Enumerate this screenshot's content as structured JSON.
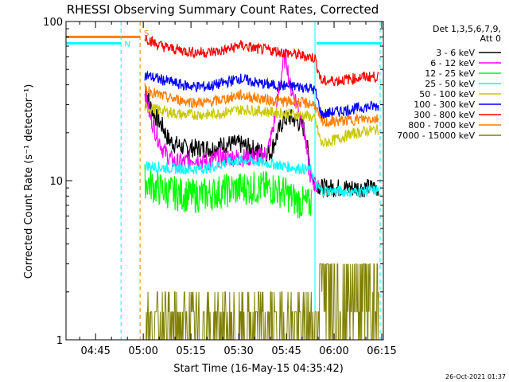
{
  "chart_data": {
    "type": "line",
    "title": "RHESSI Observing Summary Count Rates, Corrected",
    "xlabel": "Start Time (16-May-15 04:35:42)",
    "ylabel": "Corrected Count Rate (s⁻¹ detector⁻¹)",
    "ylog": true,
    "ylim": [
      1,
      100
    ],
    "xlim_min": [
      35.7,
      135.5
    ],
    "x_ticks": [
      {
        "min": 45,
        "label": "04:45"
      },
      {
        "min": 60,
        "label": "05:00"
      },
      {
        "min": 75,
        "label": "05:15"
      },
      {
        "min": 90,
        "label": "05:30"
      },
      {
        "min": 105,
        "label": "05:45"
      },
      {
        "min": 120,
        "label": "06:00"
      },
      {
        "min": 135,
        "label": "06:15"
      }
    ],
    "y_ticks": [
      {
        "value": 1,
        "label": "1"
      },
      {
        "value": 10,
        "label": "10"
      },
      {
        "value": 100,
        "label": "100"
      }
    ],
    "legend": {
      "header_line1": "Det 1,3,5,6,7,9,",
      "header_line2": "Att 0",
      "position": "right"
    },
    "series": [
      {
        "name": "3 - 6 keV",
        "color": "#000000",
        "points": [
          [
            60.5,
            40
          ],
          [
            62,
            30
          ],
          [
            64,
            25
          ],
          [
            66,
            22
          ],
          [
            68,
            18
          ],
          [
            70,
            17
          ],
          [
            73,
            16
          ],
          [
            78,
            16
          ],
          [
            82,
            16
          ],
          [
            86,
            17
          ],
          [
            90,
            17
          ],
          [
            94,
            16
          ],
          [
            98,
            15
          ],
          [
            100,
            15
          ],
          [
            102,
            19
          ],
          [
            104,
            24
          ],
          [
            106,
            25
          ],
          [
            108,
            24
          ],
          [
            110,
            22
          ],
          [
            111,
            20
          ],
          [
            112,
            14
          ],
          [
            113,
            11
          ],
          [
            114,
            10
          ],
          [
            116,
            9
          ],
          [
            120,
            9
          ],
          [
            125,
            9
          ],
          [
            130,
            9
          ],
          [
            134,
            9
          ]
        ]
      },
      {
        "name": "6 - 12 keV",
        "color": "#ff00ff",
        "points": [
          [
            60.5,
            35
          ],
          [
            62,
            26
          ],
          [
            64,
            20
          ],
          [
            66,
            16
          ],
          [
            68,
            14
          ],
          [
            70,
            13
          ],
          [
            73,
            13
          ],
          [
            76,
            14
          ],
          [
            80,
            13
          ],
          [
            84,
            14
          ],
          [
            88,
            14
          ],
          [
            92,
            14
          ],
          [
            96,
            14
          ],
          [
            99,
            15
          ],
          [
            101,
            22
          ],
          [
            103,
            40
          ],
          [
            104,
            55
          ],
          [
            105,
            60
          ],
          [
            106,
            40
          ],
          [
            108,
            32
          ],
          [
            110,
            24
          ],
          [
            111,
            18
          ],
          [
            112,
            12
          ],
          [
            113,
            10
          ],
          [
            115,
            9
          ]
        ]
      },
      {
        "name": "12 - 25 keV",
        "color": "#00ff00",
        "points": [
          [
            60.5,
            10
          ],
          [
            64,
            9
          ],
          [
            68,
            8.5
          ],
          [
            72,
            8.2
          ],
          [
            76,
            8
          ],
          [
            80,
            8.2
          ],
          [
            84,
            8.5
          ],
          [
            88,
            8.8
          ],
          [
            92,
            9
          ],
          [
            96,
            9
          ],
          [
            100,
            9
          ],
          [
            104,
            8.5
          ],
          [
            108,
            7.5
          ],
          [
            112,
            7
          ],
          [
            113,
            7.5
          ]
        ]
      },
      {
        "name": "25 - 50 keV",
        "color": "#00ffff",
        "points": [
          [
            60.5,
            12.5
          ],
          [
            64,
            12.2
          ],
          [
            68,
            12
          ],
          [
            72,
            11.9
          ],
          [
            76,
            11.8
          ],
          [
            80,
            12
          ],
          [
            84,
            12.6
          ],
          [
            88,
            13.2
          ],
          [
            92,
            13.5
          ],
          [
            96,
            13.1
          ],
          [
            100,
            12.8
          ],
          [
            104,
            12.4
          ],
          [
            108,
            12
          ],
          [
            111,
            11.8
          ],
          [
            113,
            11.6
          ],
          [
            114,
            9.5
          ],
          [
            116,
            8.6
          ],
          [
            120,
            8.6
          ],
          [
            125,
            8.5
          ],
          [
            130,
            8.6
          ],
          [
            134,
            8.7
          ]
        ]
      },
      {
        "name": "50 - 100 keV",
        "color": "#c8c800",
        "points": [
          [
            60.5,
            29
          ],
          [
            64,
            28
          ],
          [
            68,
            27
          ],
          [
            72,
            26
          ],
          [
            76,
            26
          ],
          [
            80,
            26
          ],
          [
            84,
            26.5
          ],
          [
            88,
            27.5
          ],
          [
            92,
            28
          ],
          [
            96,
            27.5
          ],
          [
            100,
            27
          ],
          [
            104,
            26.5
          ],
          [
            108,
            26
          ],
          [
            112,
            25.5
          ],
          [
            114,
            24
          ],
          [
            116,
            17
          ],
          [
            120,
            18
          ],
          [
            125,
            19.5
          ],
          [
            130,
            20.5
          ],
          [
            134,
            21
          ]
        ]
      },
      {
        "name": "100 - 300 keV",
        "color": "#0000ff",
        "points": [
          [
            60.5,
            46
          ],
          [
            64,
            44
          ],
          [
            68,
            42
          ],
          [
            72,
            40
          ],
          [
            76,
            39
          ],
          [
            80,
            39
          ],
          [
            84,
            40.5
          ],
          [
            88,
            42.5
          ],
          [
            90,
            44
          ],
          [
            92,
            43
          ],
          [
            96,
            41
          ],
          [
            100,
            40
          ],
          [
            104,
            39.5
          ],
          [
            108,
            39
          ],
          [
            112,
            38.5
          ],
          [
            114,
            37
          ],
          [
            116,
            26
          ],
          [
            120,
            27
          ],
          [
            125,
            28
          ],
          [
            130,
            29
          ],
          [
            134,
            29.5
          ]
        ]
      },
      {
        "name": "300 - 800 keV",
        "color": "#ff0000",
        "points": [
          [
            60.5,
            80
          ],
          [
            64,
            72
          ],
          [
            68,
            68
          ],
          [
            72,
            66
          ],
          [
            76,
            64
          ],
          [
            80,
            64
          ],
          [
            84,
            65
          ],
          [
            88,
            68
          ],
          [
            90,
            71
          ],
          [
            92,
            70
          ],
          [
            96,
            67
          ],
          [
            100,
            66
          ],
          [
            104,
            64
          ],
          [
            108,
            62
          ],
          [
            112,
            60
          ],
          [
            114,
            59
          ],
          [
            116,
            42
          ],
          [
            120,
            42.5
          ],
          [
            125,
            43.5
          ],
          [
            130,
            45
          ],
          [
            134,
            45
          ]
        ]
      },
      {
        "name": "800 - 7000 keV",
        "color": "#ff7f00",
        "points": [
          [
            60.5,
            38
          ],
          [
            64,
            35
          ],
          [
            68,
            33
          ],
          [
            72,
            32
          ],
          [
            76,
            31
          ],
          [
            80,
            31
          ],
          [
            84,
            32
          ],
          [
            88,
            33.5
          ],
          [
            90,
            34.5
          ],
          [
            92,
            34
          ],
          [
            96,
            33
          ],
          [
            100,
            32
          ],
          [
            104,
            31.5
          ],
          [
            108,
            31
          ],
          [
            112,
            30.5
          ],
          [
            114,
            30
          ],
          [
            116,
            23
          ],
          [
            120,
            23.5
          ],
          [
            125,
            24
          ],
          [
            130,
            24.5
          ],
          [
            134,
            24.5
          ]
        ]
      },
      {
        "name": "7000 - 15000 keV",
        "color": "#808000",
        "points": [
          [
            60.5,
            1.5
          ],
          [
            70,
            1.5
          ],
          [
            80,
            1.5
          ],
          [
            90,
            1.5
          ],
          [
            100,
            1.5
          ],
          [
            110,
            1.5
          ],
          [
            120,
            1.5
          ],
          [
            130,
            1.5
          ],
          [
            134,
            1.5
          ]
        ]
      }
    ],
    "annotations": [
      {
        "type": "hline",
        "color": "#00ffff",
        "y": 73,
        "x0": 35.7,
        "x1": 53
      },
      {
        "type": "hline",
        "color": "#ff7f00",
        "y": 80,
        "x0": 35.7,
        "x1": 59
      },
      {
        "type": "hline",
        "color": "#00ffff",
        "y": 73,
        "x0": 114.5,
        "x1": 135
      },
      {
        "type": "vline",
        "color": "#00ffff",
        "style": "dashed",
        "x": 53
      },
      {
        "type": "vline",
        "color": "#ff7f00",
        "style": "dashed",
        "x": 59
      },
      {
        "type": "vline",
        "color": "#00ffff",
        "style": "solid",
        "x": 114
      },
      {
        "type": "vline",
        "color": "#00ffff",
        "style": "dashed",
        "x": 134.5
      },
      {
        "type": "label",
        "text": "N",
        "color": "#00ffff",
        "x": 55,
        "y": 73
      },
      {
        "type": "label",
        "text": "S",
        "color": "#ff7f00",
        "x": 61,
        "y": 85
      }
    ]
  },
  "timestamp": "26-Oct-2021 01:37"
}
